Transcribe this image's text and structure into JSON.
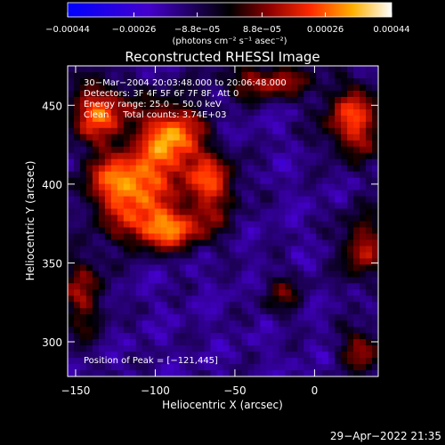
{
  "chart_data": {
    "type": "heatmap",
    "title": "Reconstructed RHESSI Image",
    "xlabel": "Heliocentric X (arcsec)",
    "ylabel": "Heliocentric Y (arcsec)",
    "xlim": [
      -155,
      40
    ],
    "ylim": [
      278,
      475
    ],
    "x_ticks": [
      -150,
      -100,
      -50,
      0
    ],
    "y_ticks": [
      300,
      350,
      400,
      450
    ],
    "x_tick_labels": [
      "−150",
      "−100",
      "−50",
      "0"
    ],
    "y_tick_labels": [
      "300",
      "350",
      "400",
      "450"
    ],
    "colorbar": {
      "range": [
        -0.00044,
        0.00044
      ],
      "ticks": [
        -0.00044,
        -0.00026,
        -8.8e-05,
        8.8e-05,
        0.00026,
        0.00044
      ],
      "tick_labels": [
        "−0.00044",
        "−0.00026",
        "−8.8e−05",
        "8.8e−05",
        "0.00026",
        "0.00044"
      ],
      "unit_text": "(photons cm⁻² s⁻¹ asec⁻²)"
    },
    "annotations": [
      "30−Mar−2004 20:03:48.000 to 20:06:48.000",
      "Detectors: 3F 4F 5F 6F 7F 8F, Att 0",
      "Energy range: 25.0 − 50.0 keV",
      "Clean     Total counts: 3.74E+03"
    ],
    "peak_text": "Position of Peak = [−121,445]",
    "peak": {
      "x": -121,
      "y": 445
    },
    "bright_regions": [
      {
        "x": -118,
        "y": 400,
        "amp": 1.0,
        "sx": 18,
        "sy": 14
      },
      {
        "x": -90,
        "y": 430,
        "amp": 0.95,
        "sx": 14,
        "sy": 16
      },
      {
        "x": -135,
        "y": 445,
        "amp": 0.8,
        "sx": 14,
        "sy": 14
      },
      {
        "x": -95,
        "y": 372,
        "amp": 0.9,
        "sx": 20,
        "sy": 10
      },
      {
        "x": -65,
        "y": 400,
        "amp": 0.7,
        "sx": 12,
        "sy": 14
      },
      {
        "x": -30,
        "y": 465,
        "amp": 0.6,
        "sx": 20,
        "sy": 8
      },
      {
        "x": 25,
        "y": 440,
        "amp": 0.75,
        "sx": 14,
        "sy": 16
      },
      {
        "x": 30,
        "y": 360,
        "amp": 0.6,
        "sx": 10,
        "sy": 16
      },
      {
        "x": 30,
        "y": 295,
        "amp": 0.55,
        "sx": 10,
        "sy": 10
      },
      {
        "x": -145,
        "y": 330,
        "amp": 0.5,
        "sx": 10,
        "sy": 20
      },
      {
        "x": -20,
        "y": 330,
        "amp": 0.35,
        "sx": 10,
        "sy": 10
      }
    ]
  },
  "footer": {
    "date_text": "29−Apr−2022 21:35"
  },
  "colors": {
    "background": "#000000",
    "text": "#ffffff"
  }
}
